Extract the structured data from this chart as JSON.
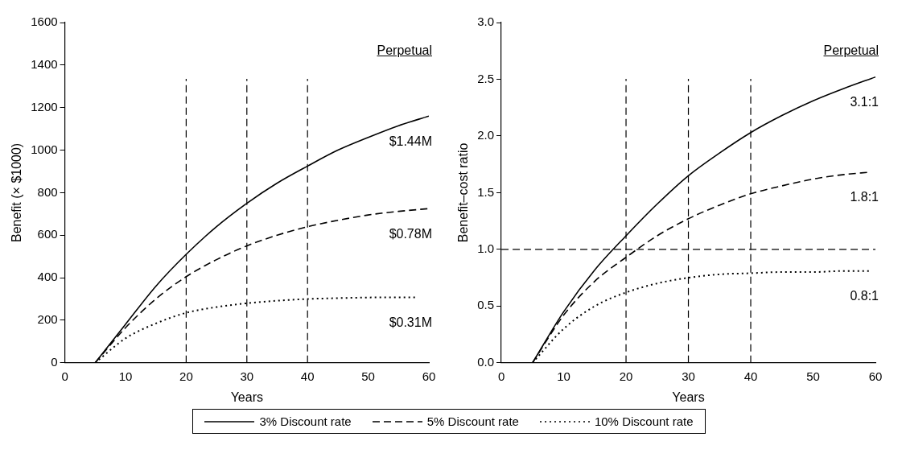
{
  "chart_data": [
    {
      "type": "line",
      "xlabel": "Years",
      "ylabel": "Benefit (× $1000)",
      "xlim": [
        0,
        60
      ],
      "xticks": [
        0,
        10,
        20,
        30,
        40,
        50,
        60
      ],
      "ylim": [
        0,
        1600
      ],
      "yticks": [
        0,
        200,
        400,
        600,
        800,
        1000,
        1200,
        1400,
        1600
      ],
      "grid": false,
      "marker": "none",
      "legend": "bottom",
      "ref_lines": [
        {
          "axis": "x",
          "value": 20,
          "line_style": "dashed"
        },
        {
          "axis": "x",
          "value": 30,
          "line_style": "dashed"
        },
        {
          "axis": "x",
          "value": 40,
          "line_style": "dashed"
        }
      ],
      "annotations": [
        "Perpetual",
        "$1.44M",
        "$0.78M",
        "$0.31M"
      ],
      "series": [
        {
          "name": "3% Discount rate",
          "color": "#000000",
          "line_style": "solid",
          "x": [
            5,
            10,
            15,
            20,
            25,
            30,
            35,
            40,
            45,
            50,
            55,
            60
          ],
          "values": [
            0,
            181,
            360,
            510,
            640,
            750,
            845,
            925,
            1000,
            1060,
            1115,
            1160
          ]
        },
        {
          "name": "5% Discount rate",
          "color": "#000000",
          "line_style": "dashed",
          "x": [
            5,
            10,
            15,
            20,
            25,
            30,
            35,
            40,
            45,
            50,
            55,
            60
          ],
          "values": [
            0,
            165,
            300,
            405,
            485,
            550,
            600,
            640,
            670,
            695,
            712,
            725
          ]
        },
        {
          "name": "10% Discount rate",
          "color": "#000000",
          "line_style": "dotted",
          "x": [
            5,
            10,
            15,
            20,
            25,
            30,
            35,
            40,
            45,
            50,
            55,
            58
          ],
          "values": [
            0,
            115,
            185,
            235,
            262,
            280,
            292,
            300,
            304,
            307,
            308,
            308
          ]
        }
      ]
    },
    {
      "type": "line",
      "xlabel": "Years",
      "ylabel": "Benefit–cost ratio",
      "xlim": [
        0,
        60
      ],
      "xticks": [
        0,
        10,
        20,
        30,
        40,
        50,
        60
      ],
      "ylim": [
        0,
        3
      ],
      "yticks": [
        {
          "value": 0,
          "label": "0.0"
        },
        {
          "value": 0.5,
          "label": "0.5"
        },
        {
          "value": 1,
          "label": "1.0"
        },
        {
          "value": 1.5,
          "label": "1.5"
        },
        {
          "value": 2,
          "label": "2.0"
        },
        {
          "value": 2.5,
          "label": "2.5"
        },
        {
          "value": 3,
          "label": "3.0"
        }
      ],
      "grid": false,
      "marker": "none",
      "ref_lines": [
        {
          "axis": "x",
          "value": 20,
          "line_style": "dashed"
        },
        {
          "axis": "x",
          "value": 30,
          "line_style": "dashed"
        },
        {
          "axis": "x",
          "value": 40,
          "line_style": "dashed"
        },
        {
          "axis": "y",
          "value": 1,
          "line_style": "dashed"
        }
      ],
      "annotations": [
        "Perpetual",
        "3.1:1",
        "1.8:1",
        "0.8:1"
      ],
      "series": [
        {
          "color": "#000000",
          "line_style": "solid",
          "x": [
            5,
            10,
            15,
            20,
            25,
            30,
            35,
            40,
            45,
            50,
            55,
            60
          ],
          "values": [
            0,
            0.45,
            0.82,
            1.12,
            1.4,
            1.65,
            1.85,
            2.03,
            2.18,
            2.31,
            2.42,
            2.52
          ]
        },
        {
          "color": "#000000",
          "line_style": "dashed",
          "x": [
            5,
            10,
            15,
            20,
            25,
            30,
            35,
            40,
            45,
            50,
            55,
            59
          ],
          "values": [
            0,
            0.42,
            0.72,
            0.93,
            1.12,
            1.27,
            1.39,
            1.49,
            1.56,
            1.62,
            1.66,
            1.68
          ]
        },
        {
          "color": "#000000",
          "line_style": "dotted",
          "x": [
            5,
            10,
            15,
            20,
            25,
            30,
            35,
            40,
            45,
            50,
            55,
            59
          ],
          "values": [
            0,
            0.3,
            0.5,
            0.62,
            0.7,
            0.75,
            0.78,
            0.79,
            0.8,
            0.8,
            0.81,
            0.81
          ]
        }
      ]
    }
  ]
}
